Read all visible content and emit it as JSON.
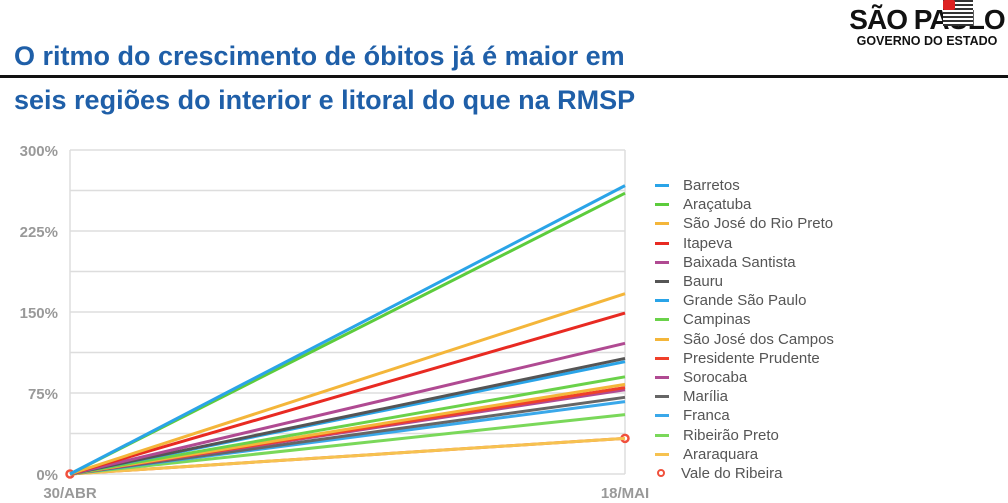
{
  "header": {
    "line1": "O ritmo do crescimento de óbitos já é maior em",
    "line2": "seis regiões do interior e litoral do que na RMSP",
    "logo_main": "SÃO PAULO",
    "logo_sub": "GOVERNO DO ESTADO"
  },
  "chart_data": {
    "type": "line",
    "x": [
      "30/ABR",
      "18/MAI"
    ],
    "yticks": [
      "0%",
      "75%",
      "150%",
      "225%",
      "300%"
    ],
    "ylim": [
      0,
      300
    ],
    "legend_position": "right",
    "series": [
      {
        "name": "Barretos",
        "color": "#2aa4e8",
        "values": [
          0,
          267
        ]
      },
      {
        "name": "Araçatuba",
        "color": "#5ccc3c",
        "values": [
          0,
          260
        ]
      },
      {
        "name": "São José do Rio Preto",
        "color": "#f4b63a",
        "values": [
          0,
          167
        ]
      },
      {
        "name": "Itapeva",
        "color": "#e82a22",
        "values": [
          0,
          149
        ]
      },
      {
        "name": "Baixada Santista",
        "color": "#b04a92",
        "values": [
          0,
          121
        ]
      },
      {
        "name": "Bauru",
        "color": "#555555",
        "values": [
          0,
          107
        ]
      },
      {
        "name": "Grande São Paulo",
        "color": "#2aa4e8",
        "values": [
          0,
          104
        ]
      },
      {
        "name": "Campinas",
        "color": "#6ad24a",
        "values": [
          0,
          90
        ]
      },
      {
        "name": "São José dos Campos",
        "color": "#f4b63a",
        "values": [
          0,
          83
        ]
      },
      {
        "name": "Presidente Prudente",
        "color": "#f0402a",
        "values": [
          0,
          80
        ]
      },
      {
        "name": "Sorocaba",
        "color": "#b04a92",
        "values": [
          0,
          78
        ]
      },
      {
        "name": "Marília",
        "color": "#666666",
        "values": [
          0,
          71
        ]
      },
      {
        "name": "Franca",
        "color": "#3aa8ea",
        "values": [
          0,
          67
        ]
      },
      {
        "name": "Ribeirão Preto",
        "color": "#7ad85a",
        "values": [
          0,
          55
        ]
      },
      {
        "name": "Araraquara",
        "color": "#f6c250",
        "values": [
          0,
          33
        ]
      },
      {
        "name": "Vale do Ribeira",
        "color": "#f0503c",
        "values": [
          0,
          33
        ],
        "marker": "circle"
      }
    ]
  }
}
